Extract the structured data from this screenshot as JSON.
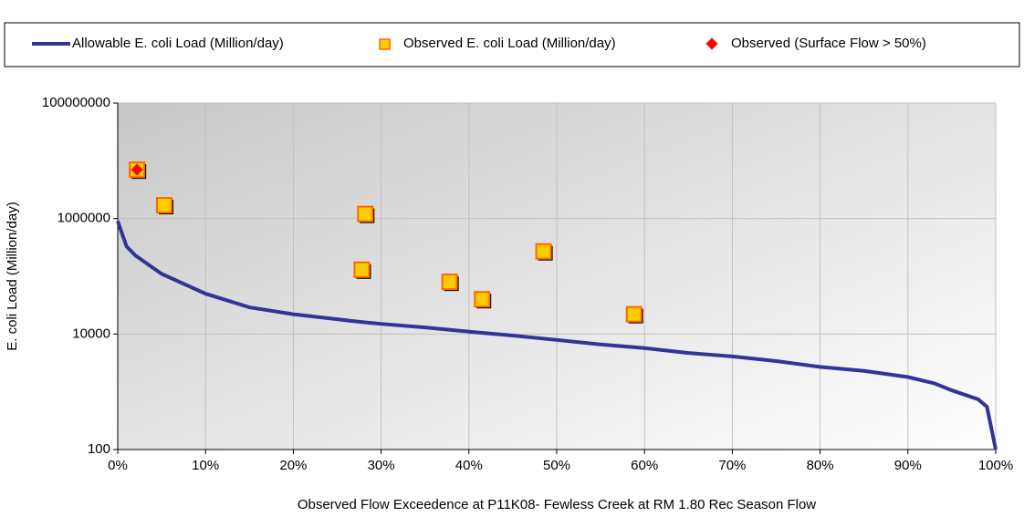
{
  "chart_data": {
    "type": "line",
    "xlabel": "Observed Flow Exceedence at P11K08- Fewless Creek at RM 1.80 Rec Season Flow",
    "ylabel": "E. coli Load (Million/day)",
    "xlim": [
      0,
      100
    ],
    "xticks": [
      {
        "value": 0,
        "label": "0%"
      },
      {
        "value": 10,
        "label": "10%"
      },
      {
        "value": 20,
        "label": "20%"
      },
      {
        "value": 30,
        "label": "30%"
      },
      {
        "value": 40,
        "label": "40%"
      },
      {
        "value": 50,
        "label": "50%"
      },
      {
        "value": 60,
        "label": "60%"
      },
      {
        "value": 70,
        "label": "70%"
      },
      {
        "value": 80,
        "label": "80%"
      },
      {
        "value": 90,
        "label": "90%"
      },
      {
        "value": 100,
        "label": "100%"
      }
    ],
    "ylim": [
      100,
      100000000
    ],
    "yticks": [
      100,
      10000,
      1000000,
      100000000
    ],
    "ylog": true,
    "grid": true,
    "legend": "top",
    "series": [
      {
        "name": "Allowable E. coli Load (Million/day)",
        "color": "#333399",
        "kind": "line",
        "x": [
          0,
          1,
          2,
          5,
          10,
          15,
          20,
          25,
          28,
          30,
          35,
          40,
          45,
          50,
          55,
          60,
          65,
          70,
          75,
          80,
          85,
          90,
          93,
          95,
          98,
          99,
          100
        ],
        "values": [
          900000,
          330000,
          230000,
          110000,
          50000,
          29000,
          22000,
          18000,
          16000,
          15000,
          13000,
          11000,
          9400,
          7900,
          6600,
          5700,
          4700,
          4100,
          3400,
          2700,
          2300,
          1800,
          1400,
          1060,
          740,
          550,
          100
        ]
      },
      {
        "name": "Observed E. coli Load (Million/day)",
        "color": "#ffcc00",
        "kind": "square",
        "x": [
          2.2,
          5.3,
          28.2,
          27.8,
          37.8,
          41.5,
          48.5,
          58.8
        ],
        "values": [
          7000000,
          1700000,
          1200000,
          130000,
          80000,
          40000,
          270000,
          22000
        ]
      },
      {
        "name": "Observed (Surface Flow > 50%)",
        "color": "#ff0000",
        "kind": "diamond",
        "x": [
          2.2
        ],
        "values": [
          7000000
        ]
      }
    ]
  }
}
